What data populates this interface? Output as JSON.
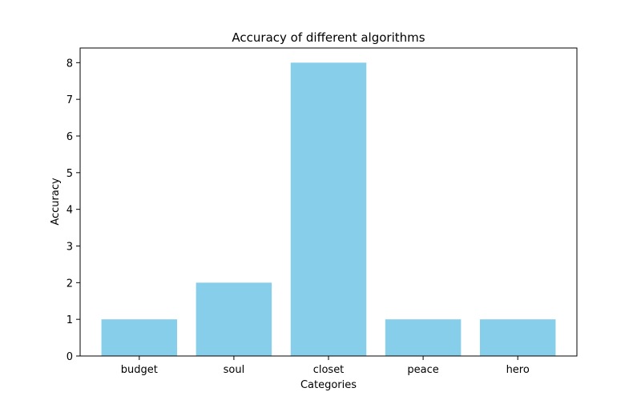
{
  "chart_data": {
    "type": "bar",
    "title": "Accuracy of different algorithms",
    "xlabel": "Categories",
    "ylabel": "Accuracy",
    "categories": [
      "budget",
      "soul",
      "closet",
      "peace",
      "hero"
    ],
    "values": [
      1,
      2,
      8,
      1,
      1
    ],
    "ylim": [
      0,
      8.4
    ],
    "yticks": [
      "0",
      "1",
      "2",
      "3",
      "4",
      "5",
      "6",
      "7",
      "8"
    ],
    "bar_color": "#87ceeb",
    "grid": false,
    "legend": "none"
  }
}
